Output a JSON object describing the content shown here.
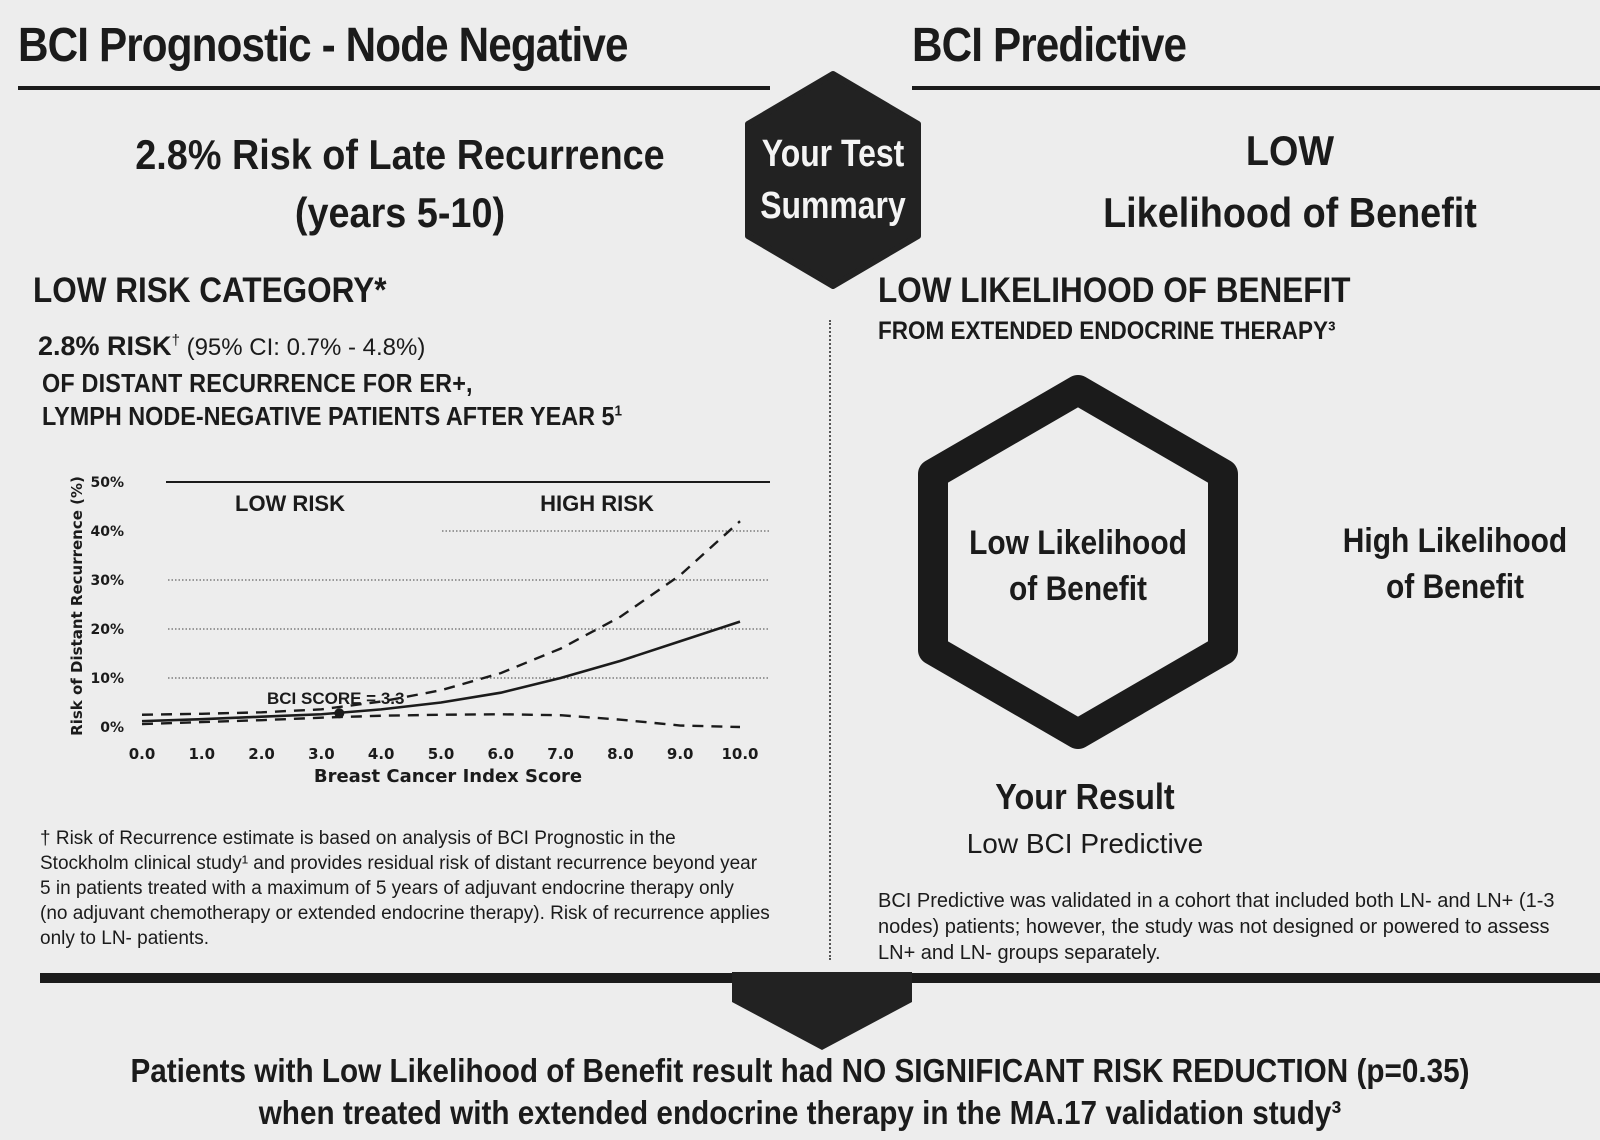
{
  "left": {
    "title": "BCI Prognostic - Node Negative",
    "headline_line1": "2.8% Risk of Late Recurrence",
    "headline_line2": "(years 5-10)",
    "category": "LOW RISK CATEGORY*",
    "risk_value": "2.8% RISK",
    "risk_dagger": "†",
    "risk_ci": " (95% CI: 0.7% - 4.8%)",
    "desc_line1": "OF DISTANT RECURRENCE FOR ER+,",
    "desc_line2": "LYMPH NODE-NEGATIVE PATIENTS AFTER YEAR 5",
    "desc_sup": "1",
    "footnote_line1": "† Risk of Recurrence estimate is based on analysis of BCI Prognostic in the",
    "footnote_line2": "Stockholm clinical study¹ and provides residual risk of distant recurrence beyond year",
    "footnote_line3": "5 in patients treated with a maximum of 5 years of adjuvant endocrine therapy only",
    "footnote_line4": "(no adjuvant chemotherapy or extended endocrine therapy). Risk of recurrence applies",
    "footnote_line5": "only to LN- patients."
  },
  "badge": {
    "line1": "Your Test",
    "line2": "Summary"
  },
  "right": {
    "title": "BCI Predictive",
    "headline_line1": "LOW",
    "headline_line2": "Likelihood of Benefit",
    "category": "LOW LIKELIHOOD OF BENEFIT",
    "subcategory": "FROM EXTENDED ENDOCRINE THERAPY³",
    "hex_label_line1": "Low Likelihood",
    "hex_label_line2": "of Benefit",
    "high_label_line1": "High Likelihood",
    "high_label_line2": "of Benefit",
    "result_title": "Your Result",
    "result_value": "Low BCI Predictive",
    "note_line1": "BCI Predictive was validated in a cohort that included both LN- and LN+ (1-3",
    "note_line2": "nodes) patients; however, the study was not designed or powered to assess",
    "note_line3": "LN+ and LN- groups separately."
  },
  "bottom": {
    "line1": "Patients with Low Likelihood of Benefit result had NO SIGNIFICANT RISK REDUCTION (p=0.35)",
    "line2": "when treated with extended endocrine therapy in the MA.17 validation study³"
  },
  "chart_data": {
    "type": "line",
    "xlabel": "Breast Cancer Index Score",
    "ylabel": "Risk of Distant Recurrence (%)",
    "xlim": [
      0,
      10
    ],
    "ylim": [
      0,
      50
    ],
    "x_ticks": [
      "0.0",
      "1.0",
      "2.0",
      "3.0",
      "4.0",
      "5.0",
      "6.0",
      "7.0",
      "8.0",
      "9.0",
      "10.0"
    ],
    "y_ticks": [
      "0%",
      "10%",
      "20%",
      "30%",
      "40%",
      "50%"
    ],
    "y_tick_values": [
      0,
      10,
      20,
      30,
      40,
      50
    ],
    "grid": "dotted horizontal",
    "region_labels": [
      "LOW RISK",
      "HIGH RISK"
    ],
    "annotation": "BCI SCORE = 3.3",
    "marker": {
      "x": 3.3,
      "y": 2.8
    },
    "x": [
      0,
      1,
      2,
      3,
      4,
      5,
      6,
      7,
      8,
      9,
      10
    ],
    "series": [
      {
        "style": "solid",
        "values": [
          1.2,
          1.6,
          2.1,
          2.6,
          3.6,
          5.0,
          7.0,
          10.0,
          13.5,
          17.5,
          21.5
        ]
      },
      {
        "style": "dashed",
        "values": [
          2.5,
          2.7,
          3.0,
          3.6,
          5.2,
          7.5,
          11.0,
          16.0,
          22.5,
          31.0,
          42.0
        ]
      },
      {
        "style": "dashed",
        "values": [
          0.6,
          1.0,
          1.4,
          1.9,
          2.3,
          2.5,
          2.6,
          2.4,
          1.5,
          0.3,
          0
        ]
      }
    ]
  }
}
